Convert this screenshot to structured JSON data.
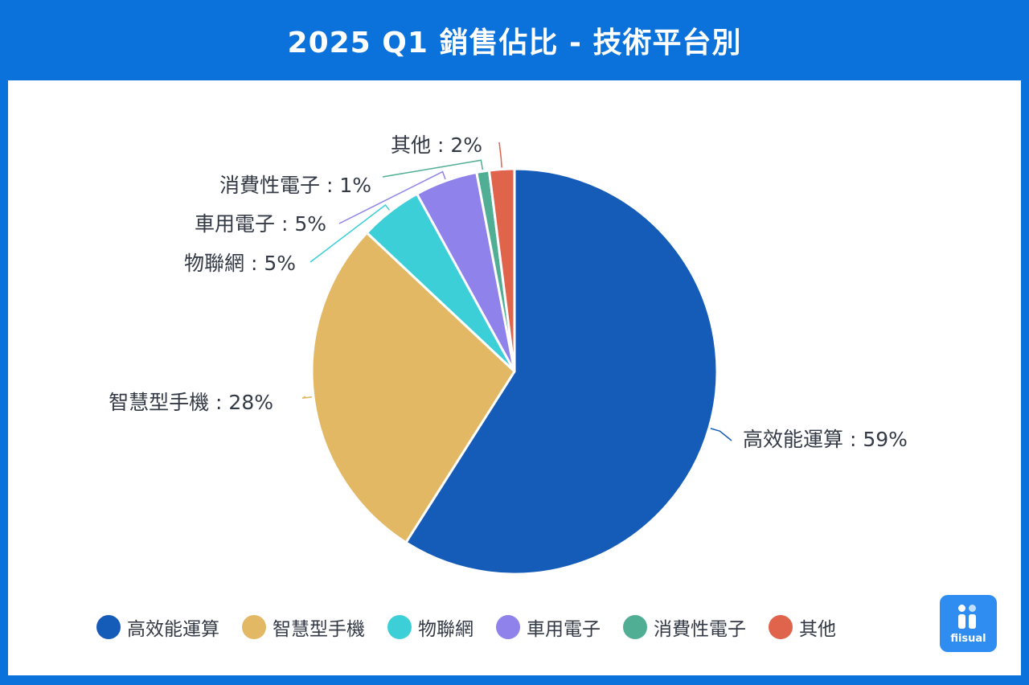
{
  "title": "2025 Q1 銷售佔比 - 技術平台別",
  "chart_data": {
    "type": "pie",
    "title": "2025 Q1 銷售佔比 - 技術平台別",
    "slices": [
      {
        "label": "高效能運算",
        "value": 59,
        "display": "高效能運算 : 59%",
        "color": "#155bb8"
      },
      {
        "label": "智慧型手機",
        "value": 28,
        "display": "智慧型手機 : 28%",
        "color": "#e3b864"
      },
      {
        "label": "物聯網",
        "value": 5,
        "display": "物聯網 : 5%",
        "color": "#3ccfd8"
      },
      {
        "label": "車用電子",
        "value": 5,
        "display": "車用電子 : 5%",
        "color": "#8f82ea"
      },
      {
        "label": "消費性電子",
        "value": 1,
        "display": "消費性電子 : 1%",
        "color": "#4fae94"
      },
      {
        "label": "其他",
        "value": 2,
        "display": "其他 : 2%",
        "color": "#e0634b"
      }
    ],
    "legend_position": "bottom"
  },
  "legend": {
    "items": [
      {
        "label": "高效能運算",
        "color": "#155bb8"
      },
      {
        "label": "智慧型手機",
        "color": "#e3b864"
      },
      {
        "label": "物聯網",
        "color": "#3ccfd8"
      },
      {
        "label": "車用電子",
        "color": "#8f82ea"
      },
      {
        "label": "消費性電子",
        "color": "#4fae94"
      },
      {
        "label": "其他",
        "color": "#e0634b"
      }
    ]
  },
  "logo": {
    "text": "fiisual",
    "icon": "fiisual-logo-icon"
  }
}
